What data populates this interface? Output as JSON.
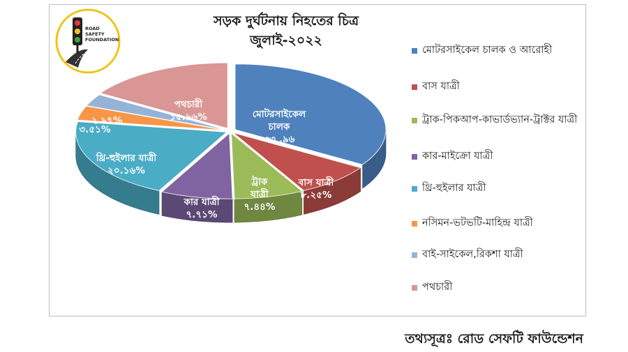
{
  "logo": {
    "icon": "traffic-light-icon",
    "text_lines": [
      "ROAD",
      "SAFETY",
      "FOUNDATION"
    ]
  },
  "source": "তথ্যসূত্রঃ রোড সেফটি ফাউন্ডেশন",
  "chart_data": {
    "type": "pie",
    "style": "3d-exploded",
    "title": "সড়ক দুর্ঘটনায় নিহতের চিত্র",
    "subtitle": "জুলাই-২০২২",
    "legend_position": "right",
    "values": [
      33.96,
      8.25,
      7.44,
      7.71,
      20.16,
      3.51,
      2.97,
      15.96
    ],
    "legend": [
      "মোটরসাইকেল চালক ও আরোহী",
      "বাস যাত্রী",
      "ট্রাক-পিকআপ-কাভার্ডভ্যান-ট্রাক্টর যাত্রী",
      "কার-মাইক্রো যাত্রী",
      "থ্রি-হুইলার যাত্রী",
      "নসিমন-ভটভটি-মাহিন্দ্র যাত্রী",
      "বাই-সাইকেল,রিকশা যাত্রী",
      "পথচারী"
    ],
    "slice_labels": [
      [
        "মোটরসাইকেল",
        "চালক",
        "৩৩ .৯৬"
      ],
      [
        "বাস যাত্রী",
        "৮.২৫%"
      ],
      [
        "ট্রাক",
        "যাত্রী",
        "৭.৪৪%"
      ],
      [
        "কার যাত্রী",
        "৭.৭১%"
      ],
      [
        "থ্রি-হুইলার যাত্রী",
        "২০.১৬%"
      ],
      [
        "৩.৫১%"
      ],
      [
        "২.৯৭%"
      ],
      [
        "পথচারী",
        "১৫.৯৬%"
      ]
    ],
    "colors": [
      "#4f81bd",
      "#c0504d",
      "#9bbb59",
      "#8064a2",
      "#4bacc6",
      "#f79646",
      "#95b3d7",
      "#d99694"
    ]
  }
}
